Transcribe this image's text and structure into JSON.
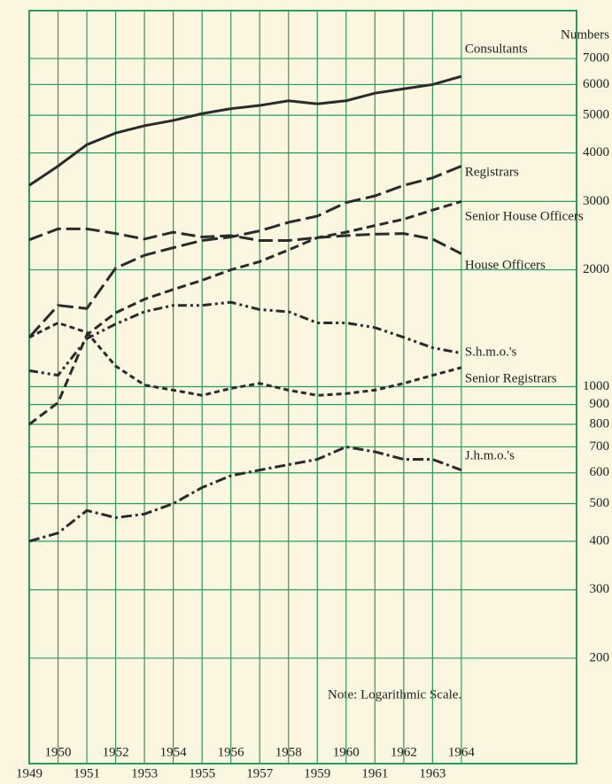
{
  "chart_data": {
    "type": "line",
    "y_axis_label": "Numbers",
    "annotation": "Note: Logarithmic Scale.",
    "x": [
      1949,
      1950,
      1951,
      1952,
      1953,
      1954,
      1955,
      1956,
      1957,
      1958,
      1959,
      1960,
      1961,
      1962,
      1963,
      1964
    ],
    "xlim": [
      1949,
      1968
    ],
    "xticks": [
      1949,
      1950,
      1951,
      1952,
      1953,
      1954,
      1955,
      1956,
      1957,
      1958,
      1959,
      1960,
      1961,
      1962,
      1963,
      1964
    ],
    "ylim": [
      107,
      9300
    ],
    "yticks": [
      200,
      300,
      400,
      500,
      600,
      700,
      800,
      900,
      1000,
      2000,
      3000,
      4000,
      5000,
      6000,
      7000
    ],
    "log_scale": true,
    "grid": true,
    "series": [
      {
        "name": "Consultants",
        "color": "#2b2b2b",
        "values": [
          3300,
          3700,
          4200,
          4500,
          4700,
          4850,
          5050,
          5200,
          5300,
          5450,
          5350,
          5450,
          5700,
          5850,
          6000,
          6300
        ]
      },
      {
        "name": "Registrars",
        "color": "#2b2b2b",
        "values": [
          1340,
          1620,
          1590,
          2020,
          2180,
          2280,
          2380,
          2430,
          2520,
          2650,
          2750,
          2980,
          3100,
          3300,
          3450,
          3700
        ]
      },
      {
        "name": "Senior House Officers",
        "color": "#2b2b2b",
        "values": [
          800,
          910,
          1360,
          1550,
          1680,
          1780,
          1880,
          2000,
          2100,
          2250,
          2420,
          2500,
          2600,
          2700,
          2850,
          3000
        ]
      },
      {
        "name": "House Officers",
        "color": "#2b2b2b",
        "values": [
          2390,
          2550,
          2550,
          2480,
          2400,
          2500,
          2430,
          2450,
          2380,
          2380,
          2420,
          2450,
          2470,
          2480,
          2400,
          2200
        ]
      },
      {
        "name": "S.h.m.o.'s",
        "color": "#2b2b2b",
        "values": [
          1100,
          1070,
          1330,
          1450,
          1560,
          1620,
          1620,
          1650,
          1580,
          1560,
          1460,
          1460,
          1420,
          1340,
          1260,
          1220
        ]
      },
      {
        "name": "Senior Registrars",
        "color": "#2b2b2b",
        "values": [
          1340,
          1460,
          1380,
          1130,
          1010,
          980,
          950,
          990,
          1020,
          980,
          950,
          960,
          980,
          1020,
          1070,
          1120
        ]
      },
      {
        "name": "J.h.m.o.'s",
        "color": "#2b2b2b",
        "values": [
          400,
          420,
          480,
          460,
          470,
          500,
          550,
          590,
          610,
          630,
          650,
          700,
          680,
          650,
          650,
          610
        ]
      }
    ]
  }
}
